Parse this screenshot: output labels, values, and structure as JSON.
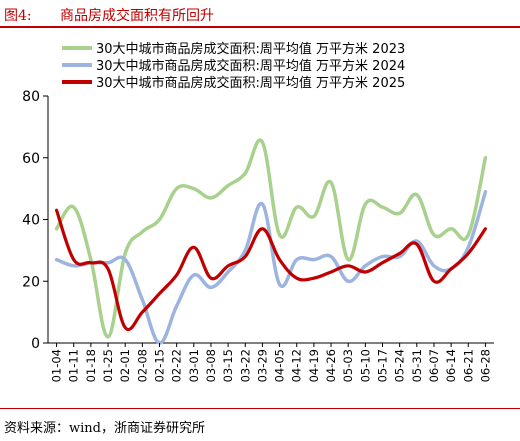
{
  "figure": {
    "label": "图4:",
    "title": "商品房成交面积有所回升",
    "source": "资料来源：wind，浙商证券研究所"
  },
  "colors": {
    "accent": "#c00000",
    "series_2023": "#a9d18e",
    "series_2024": "#9db4e0",
    "series_2025": "#c00000"
  },
  "chart_data": {
    "type": "line",
    "x": [
      "01-04",
      "01-11",
      "01-18",
      "01-25",
      "02-01",
      "02-08",
      "02-15",
      "02-22",
      "03-01",
      "03-08",
      "03-15",
      "03-22",
      "03-29",
      "04-05",
      "04-12",
      "04-19",
      "04-26",
      "05-03",
      "05-10",
      "05-17",
      "05-24",
      "05-31",
      "06-07",
      "06-14",
      "06-21",
      "06-28"
    ],
    "ylim": [
      0,
      80
    ],
    "yticks": [
      0,
      20,
      40,
      60,
      80
    ],
    "legend_position": "top",
    "grid": false,
    "series": [
      {
        "name": "30大中城市商品房成交面积:周平均值  万平方米  2023",
        "color": "#a9d18e",
        "values": [
          37,
          44,
          27,
          2,
          29,
          36,
          40,
          50,
          50,
          47,
          51,
          55,
          65,
          35,
          44,
          41,
          52,
          27,
          45,
          44,
          42,
          48,
          35,
          37,
          35,
          60
        ]
      },
      {
        "name": "30大中城市商品房成交面积:周平均值  万平方米  2024",
        "color": "#9db4e0",
        "values": [
          27,
          25,
          26,
          26,
          27,
          14,
          0,
          12,
          22,
          18,
          23,
          30,
          45,
          19,
          27,
          27,
          28,
          20,
          25,
          28,
          28,
          33,
          25,
          24,
          31,
          49
        ]
      },
      {
        "name": "30大中城市商品房成交面积:周平均值  万平方米  2025",
        "color": "#c00000",
        "values": [
          43,
          27,
          26,
          24,
          5,
          10,
          16,
          22,
          31,
          21,
          25,
          28,
          37,
          27,
          21,
          21,
          23,
          25,
          23,
          26,
          29,
          32,
          20,
          24,
          29,
          37
        ]
      }
    ]
  }
}
